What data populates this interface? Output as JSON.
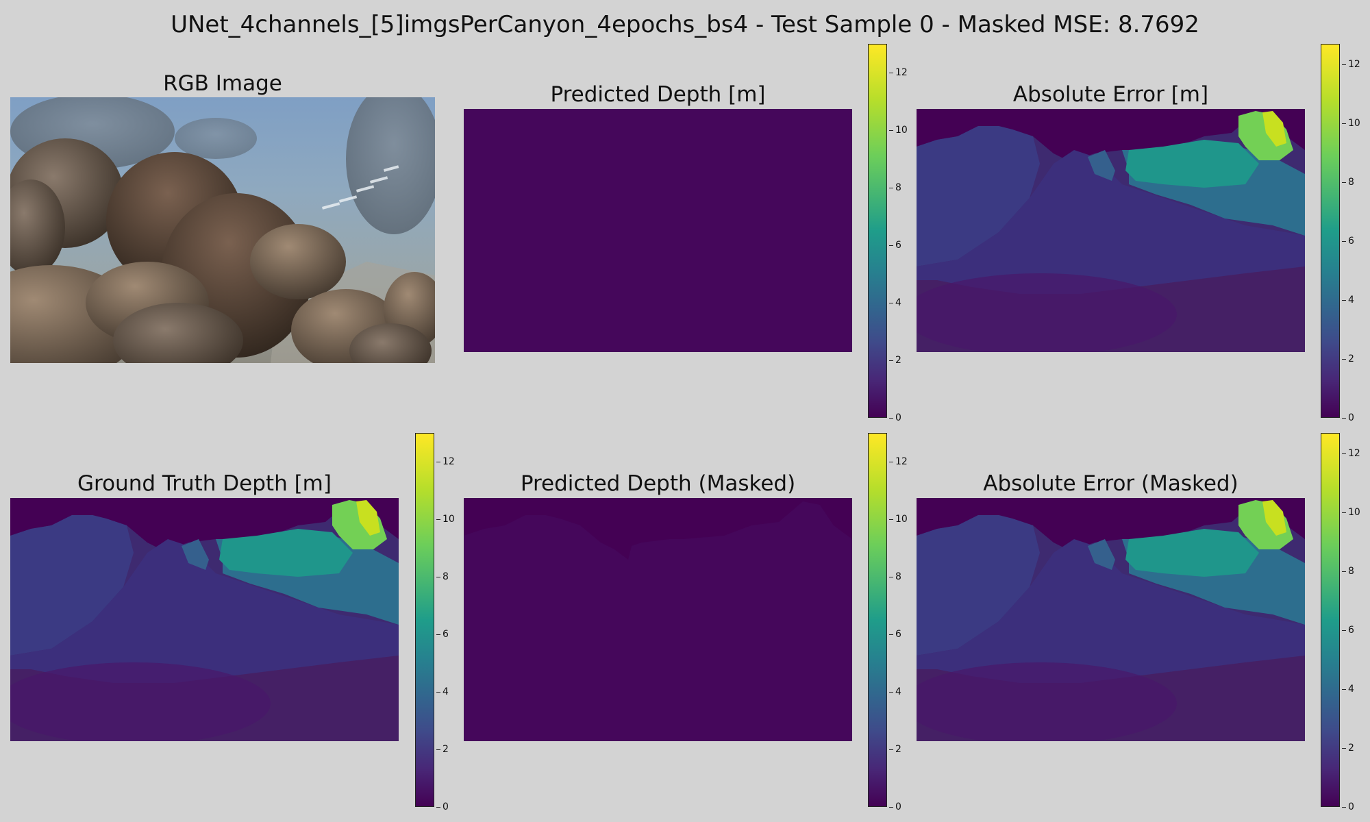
{
  "suptitle": "UNet_4channels_[5]imgsPerCanyon_4epochs_bs4 - Test Sample 0 - Masked MSE: 8.7692",
  "panels": {
    "rgb": {
      "title": "RGB Image"
    },
    "pred": {
      "title": "Predicted Depth [m]"
    },
    "err": {
      "title": "Absolute Error [m]"
    },
    "gt": {
      "title": "Ground Truth Depth [m]"
    },
    "pred_masked": {
      "title": "Predicted Depth (Masked)"
    },
    "err_masked": {
      "title": "Absolute Error (Masked)"
    }
  },
  "colormap": "viridis",
  "colors": {
    "background": "#d3d3d3",
    "viridis_low": "#440154",
    "viridis_high": "#fde725"
  },
  "chart_data": [
    {
      "type": "image",
      "title": "RGB Image",
      "content": "underwater rocky canyon photograph"
    },
    {
      "type": "heatmap",
      "title": "Predicted Depth [m]",
      "colorbar": {
        "min": 0,
        "max": 13,
        "ticks": [
          "0",
          "2",
          "4",
          "6",
          "8",
          "10",
          "12"
        ]
      },
      "approx_value": 0.3
    },
    {
      "type": "heatmap",
      "title": "Absolute Error [m]",
      "colorbar": {
        "min": 0,
        "max": 12.7,
        "ticks": [
          "0",
          "2",
          "4",
          "6",
          "8",
          "10",
          "12"
        ]
      }
    },
    {
      "type": "heatmap",
      "title": "Ground Truth Depth [m]",
      "colorbar": {
        "min": 0,
        "max": 13,
        "ticks": [
          "0",
          "2",
          "4",
          "6",
          "8",
          "10",
          "12"
        ]
      }
    },
    {
      "type": "heatmap",
      "title": "Predicted Depth (Masked)",
      "colorbar": {
        "min": 0,
        "max": 13,
        "ticks": [
          "0",
          "2",
          "4",
          "6",
          "8",
          "10",
          "12"
        ]
      },
      "approx_value": 0.3
    },
    {
      "type": "heatmap",
      "title": "Absolute Error (Masked)",
      "colorbar": {
        "min": 0,
        "max": 12.7,
        "ticks": [
          "0",
          "2",
          "4",
          "6",
          "8",
          "10",
          "12"
        ]
      }
    }
  ]
}
